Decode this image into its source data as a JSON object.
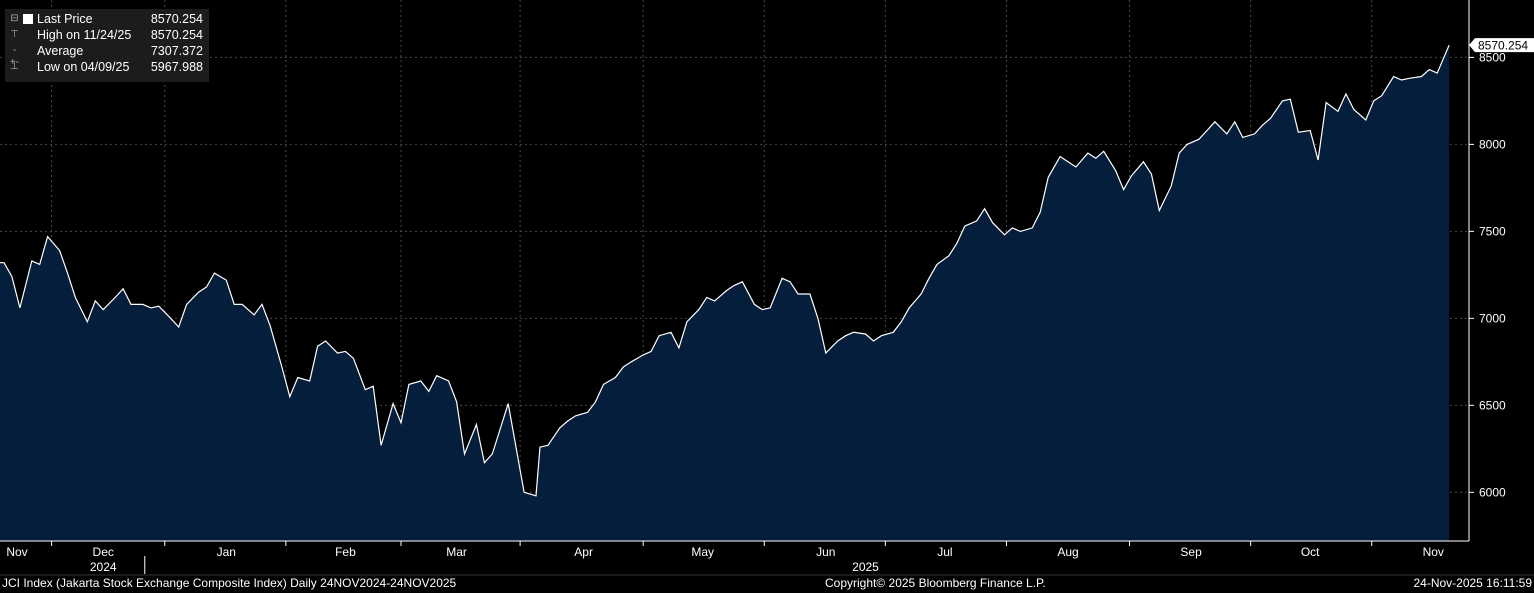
{
  "legend": {
    "last_label": "Last Price",
    "last_value": "8570.254",
    "high_label": "High on 11/24/25",
    "high_value": "8570.254",
    "avg_label": "Average",
    "avg_value": "7307.372",
    "low_label": "Low on 04/09/25",
    "low_value": "5967.988"
  },
  "footer": {
    "left": "JCI Index (Jakarta Stock Exchange Composite Index) Daily 24NOV2024-24NOV2025",
    "center": "Copyright© 2025 Bloomberg Finance L.P.",
    "right": "24-Nov-2025 16:11:59"
  },
  "colors": {
    "area": "#041e3c",
    "line": "#ffffff",
    "grid": "#4a4a4a",
    "background": "#000000"
  },
  "chart_data": {
    "type": "area",
    "ylim": [
      5720,
      8830
    ],
    "yticks": [
      6000,
      6500,
      7000,
      7500,
      8000,
      8500
    ],
    "grid": true,
    "last_label": "8570.254",
    "xlim": [
      "2024-11-24",
      "2025-11-29"
    ],
    "month_labels": [
      {
        "label": "Nov",
        "date": "2024-11-24"
      },
      {
        "label": "Dec",
        "date": "2024-12-20"
      },
      {
        "label": "Jan",
        "date": "2025-01-20"
      },
      {
        "label": "Feb",
        "date": "2025-02-19"
      },
      {
        "label": "Mar",
        "date": "2025-03-19"
      },
      {
        "label": "Apr",
        "date": "2025-04-20"
      },
      {
        "label": "May",
        "date": "2025-05-20"
      },
      {
        "label": "Jun",
        "date": "2025-06-20"
      },
      {
        "label": "Jul",
        "date": "2025-07-20"
      },
      {
        "label": "Aug",
        "date": "2025-08-20"
      },
      {
        "label": "Sep",
        "date": "2025-09-20"
      },
      {
        "label": "Oct",
        "date": "2025-10-20"
      },
      {
        "label": "Nov",
        "date": "2025-11-20"
      }
    ],
    "year_labels": [
      {
        "label": "2024",
        "date": "2024-12-20"
      },
      {
        "label": "2025",
        "date": "2025-06-30"
      }
    ],
    "series": [
      {
        "x": [
          "2024-11-25",
          "2024-11-27",
          "2024-11-29",
          "2024-12-02",
          "2024-12-04",
          "2024-12-06",
          "2024-12-09",
          "2024-12-11",
          "2024-12-13",
          "2024-12-16",
          "2024-12-18",
          "2024-12-20",
          "2024-12-23",
          "2024-12-25",
          "2024-12-27",
          "2024-12-30",
          "2025-01-01",
          "2025-01-03",
          "2025-01-06",
          "2025-01-08",
          "2025-01-10",
          "2025-01-13",
          "2025-01-15",
          "2025-01-17",
          "2025-01-20",
          "2025-01-22",
          "2025-01-24",
          "2025-01-27",
          "2025-01-29",
          "2025-01-31",
          "2025-02-03",
          "2025-02-05",
          "2025-02-07",
          "2025-02-10",
          "2025-02-12",
          "2025-02-14",
          "2025-02-17",
          "2025-02-19",
          "2025-02-21",
          "2025-02-24",
          "2025-02-26",
          "2025-02-28",
          "2025-03-03",
          "2025-03-05",
          "2025-03-07",
          "2025-03-10",
          "2025-03-12",
          "2025-03-14",
          "2025-03-17",
          "2025-03-19",
          "2025-03-21",
          "2025-03-24",
          "2025-03-26",
          "2025-03-28",
          "2025-04-01",
          "2025-04-05",
          "2025-04-08",
          "2025-04-09",
          "2025-04-11",
          "2025-04-14",
          "2025-04-16",
          "2025-04-18",
          "2025-04-21",
          "2025-04-23",
          "2025-04-25",
          "2025-04-28",
          "2025-04-30",
          "2025-05-02",
          "2025-05-05",
          "2025-05-07",
          "2025-05-09",
          "2025-05-12",
          "2025-05-14",
          "2025-05-16",
          "2025-05-19",
          "2025-05-21",
          "2025-05-23",
          "2025-05-26",
          "2025-05-28",
          "2025-05-30",
          "2025-06-02",
          "2025-06-04",
          "2025-06-06",
          "2025-06-09",
          "2025-06-11",
          "2025-06-13",
          "2025-06-16",
          "2025-06-18",
          "2025-06-20",
          "2025-06-23",
          "2025-06-25",
          "2025-06-27",
          "2025-06-30",
          "2025-07-02",
          "2025-07-04",
          "2025-07-07",
          "2025-07-09",
          "2025-07-11",
          "2025-07-14",
          "2025-07-16",
          "2025-07-18",
          "2025-07-21",
          "2025-07-23",
          "2025-07-25",
          "2025-07-28",
          "2025-07-30",
          "2025-08-01",
          "2025-08-04",
          "2025-08-06",
          "2025-08-08",
          "2025-08-11",
          "2025-08-13",
          "2025-08-15",
          "2025-08-18",
          "2025-08-20",
          "2025-08-22",
          "2025-08-25",
          "2025-08-27",
          "2025-08-29",
          "2025-09-01",
          "2025-09-03",
          "2025-09-05",
          "2025-09-08",
          "2025-09-10",
          "2025-09-12",
          "2025-09-15",
          "2025-09-17",
          "2025-09-19",
          "2025-09-22",
          "2025-09-24",
          "2025-09-26",
          "2025-09-29",
          "2025-10-01",
          "2025-10-03",
          "2025-10-06",
          "2025-10-08",
          "2025-10-10",
          "2025-10-13",
          "2025-10-15",
          "2025-10-17",
          "2025-10-20",
          "2025-10-22",
          "2025-10-24",
          "2025-10-27",
          "2025-10-29",
          "2025-10-31",
          "2025-11-03",
          "2025-11-05",
          "2025-11-07",
          "2025-11-10",
          "2025-11-12",
          "2025-11-14",
          "2025-11-17",
          "2025-11-19",
          "2025-11-21",
          "2025-11-24"
        ],
        "values": [
          7320,
          7240,
          7060,
          7330,
          7310,
          7470,
          7390,
          7260,
          7120,
          6980,
          7100,
          7050,
          7120,
          7170,
          7080,
          7080,
          7060,
          7070,
          7000,
          6950,
          7080,
          7150,
          7180,
          7260,
          7220,
          7080,
          7080,
          7020,
          7080,
          6960,
          6720,
          6550,
          6660,
          6640,
          6840,
          6870,
          6800,
          6810,
          6770,
          6590,
          6610,
          6270,
          6510,
          6400,
          6620,
          6640,
          6580,
          6670,
          6640,
          6520,
          6220,
          6390,
          6170,
          6220,
          6510,
          6000,
          5980,
          6260,
          6270,
          6370,
          6410,
          6440,
          6460,
          6520,
          6620,
          6660,
          6720,
          6750,
          6790,
          6810,
          6900,
          6920,
          6830,
          6980,
          7050,
          7120,
          7100,
          7160,
          7190,
          7210,
          7080,
          7050,
          7060,
          7230,
          7210,
          7140,
          7140,
          7000,
          6800,
          6870,
          6900,
          6920,
          6910,
          6870,
          6900,
          6920,
          6980,
          7060,
          7140,
          7230,
          7310,
          7360,
          7430,
          7530,
          7560,
          7630,
          7550,
          7480,
          7520,
          7500,
          7520,
          7610,
          7810,
          7930,
          7900,
          7870,
          7950,
          7920,
          7960,
          7850,
          7740,
          7820,
          7900,
          7830,
          7620,
          7760,
          7950,
          8000,
          8030,
          8080,
          8130,
          8060,
          8130,
          8040,
          8060,
          8110,
          8150,
          8250,
          8260,
          8070,
          8080,
          7910,
          8240,
          8190,
          8290,
          8200,
          8140,
          8250,
          8280,
          8390,
          8370,
          8380,
          8390,
          8430,
          8410,
          8570.254
        ]
      }
    ]
  }
}
